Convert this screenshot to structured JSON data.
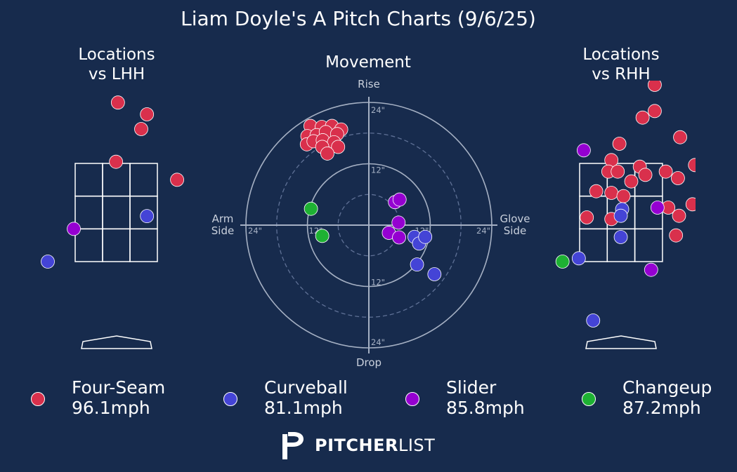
{
  "title": "Liam Doyle's A Pitch Charts (9/6/25)",
  "panels": {
    "lhh": {
      "line1": "Locations",
      "line2": "vs LHH"
    },
    "movement": {
      "title": "Movement"
    },
    "rhh": {
      "line1": "Locations",
      "line2": "vs RHH"
    }
  },
  "movement_labels": {
    "top": "Rise",
    "bottom": "Drop",
    "left_line1": "Arm",
    "left_line2": "Side",
    "right_line1": "Glove",
    "right_line2": "Side",
    "rings": [
      "12\"",
      "24\""
    ]
  },
  "colors": {
    "background": "#172b4d",
    "Four-Seam": "#d9304c",
    "Curveball": "#4444d6",
    "Slider": "#9500d1",
    "Changeup": "#1eb133"
  },
  "legend": [
    {
      "pitch": "Four-Seam",
      "speed": "96.1mph"
    },
    {
      "pitch": "Curveball",
      "speed": "81.1mph"
    },
    {
      "pitch": "Slider",
      "speed": "85.8mph"
    },
    {
      "pitch": "Changeup",
      "speed": "87.2mph"
    }
  ],
  "brand": {
    "bold": "PITCHER",
    "light": "LIST",
    "icon": "pitcherlist-logo-icon"
  },
  "chart_data": [
    {
      "type": "scatter",
      "name": "Locations vs LHH",
      "xlabel": "",
      "ylabel": "",
      "zone": {
        "cols": 3,
        "rows": 3
      },
      "units": "strike-zone widths/heights from zone bottom-left (x: 0-3, y: 0-3)",
      "points": [
        {
          "pitch": "Four-Seam",
          "x": 1.56,
          "y": 4.86
        },
        {
          "pitch": "Four-Seam",
          "x": 2.62,
          "y": 4.5
        },
        {
          "pitch": "Four-Seam",
          "x": 2.41,
          "y": 4.05
        },
        {
          "pitch": "Four-Seam",
          "x": 1.49,
          "y": 3.05
        },
        {
          "pitch": "Four-Seam",
          "x": 3.72,
          "y": 2.5
        },
        {
          "pitch": "Curveball",
          "x": 2.62,
          "y": 1.39
        },
        {
          "pitch": "Curveball",
          "x": -1.0,
          "y": 0.0
        },
        {
          "pitch": "Slider",
          "x": -0.05,
          "y": 1.0
        }
      ]
    },
    {
      "type": "scatter",
      "name": "Movement",
      "units": "inches (x: negative = arm side, positive = glove side; y: positive = rise)",
      "xlim": [
        -24,
        24
      ],
      "ylim": [
        -24,
        24
      ],
      "rings": [
        6,
        12,
        18,
        24
      ],
      "points": [
        {
          "pitch": "Four-Seam",
          "x": -11.4,
          "y": 19.4
        },
        {
          "pitch": "Four-Seam",
          "x": -9.2,
          "y": 19.2
        },
        {
          "pitch": "Four-Seam",
          "x": -7.2,
          "y": 19.4
        },
        {
          "pitch": "Four-Seam",
          "x": -5.4,
          "y": 18.7
        },
        {
          "pitch": "Four-Seam",
          "x": -12.0,
          "y": 17.4
        },
        {
          "pitch": "Four-Seam",
          "x": -10.2,
          "y": 17.6
        },
        {
          "pitch": "Four-Seam",
          "x": -8.4,
          "y": 18.2
        },
        {
          "pitch": "Four-Seam",
          "x": -6.2,
          "y": 17.8
        },
        {
          "pitch": "Four-Seam",
          "x": -12.1,
          "y": 15.8
        },
        {
          "pitch": "Four-Seam",
          "x": -10.8,
          "y": 16.4
        },
        {
          "pitch": "Four-Seam",
          "x": -9.0,
          "y": 16.6
        },
        {
          "pitch": "Four-Seam",
          "x": -6.8,
          "y": 16.2
        },
        {
          "pitch": "Four-Seam",
          "x": -9.1,
          "y": 15.3
        },
        {
          "pitch": "Four-Seam",
          "x": -6.0,
          "y": 15.3
        },
        {
          "pitch": "Four-Seam",
          "x": -8.1,
          "y": 14.0
        },
        {
          "pitch": "Curveball",
          "x": 8.9,
          "y": -2.3
        },
        {
          "pitch": "Curveball",
          "x": 9.8,
          "y": -3.6
        },
        {
          "pitch": "Curveball",
          "x": 11.0,
          "y": -2.3
        },
        {
          "pitch": "Curveball",
          "x": 9.4,
          "y": -7.7
        },
        {
          "pitch": "Curveball",
          "x": 12.8,
          "y": -9.6
        },
        {
          "pitch": "Slider",
          "x": 5.1,
          "y": 4.5
        },
        {
          "pitch": "Slider",
          "x": 6.0,
          "y": 5.0
        },
        {
          "pitch": "Slider",
          "x": 5.8,
          "y": 0.5
        },
        {
          "pitch": "Slider",
          "x": 3.9,
          "y": -1.5
        },
        {
          "pitch": "Slider",
          "x": 5.9,
          "y": -2.4
        },
        {
          "pitch": "Changeup",
          "x": -11.3,
          "y": 3.2
        },
        {
          "pitch": "Changeup",
          "x": -9.1,
          "y": -2.1
        }
      ]
    },
    {
      "type": "scatter",
      "name": "Locations vs RHH",
      "xlabel": "",
      "ylabel": "",
      "zone": {
        "cols": 3,
        "rows": 3
      },
      "units": "strike-zone widths/heights from zone bottom-left (x: 0-3, y: 0-3)",
      "points": [
        {
          "pitch": "Four-Seam",
          "x": 2.72,
          "y": 5.4
        },
        {
          "pitch": "Four-Seam",
          "x": 2.72,
          "y": 4.6
        },
        {
          "pitch": "Four-Seam",
          "x": 2.28,
          "y": 4.4
        },
        {
          "pitch": "Four-Seam",
          "x": 3.64,
          "y": 3.8
        },
        {
          "pitch": "Four-Seam",
          "x": 1.44,
          "y": 3.6
        },
        {
          "pitch": "Four-Seam",
          "x": 1.15,
          "y": 3.1
        },
        {
          "pitch": "Four-Seam",
          "x": 4.18,
          "y": 2.95
        },
        {
          "pitch": "Four-Seam",
          "x": 1.04,
          "y": 2.75
        },
        {
          "pitch": "Four-Seam",
          "x": 1.38,
          "y": 2.75
        },
        {
          "pitch": "Four-Seam",
          "x": 2.18,
          "y": 2.9
        },
        {
          "pitch": "Four-Seam",
          "x": 3.12,
          "y": 2.75
        },
        {
          "pitch": "Four-Seam",
          "x": 2.38,
          "y": 2.65
        },
        {
          "pitch": "Four-Seam",
          "x": 3.56,
          "y": 2.55
        },
        {
          "pitch": "Four-Seam",
          "x": 1.87,
          "y": 2.45
        },
        {
          "pitch": "Four-Seam",
          "x": 0.6,
          "y": 2.15
        },
        {
          "pitch": "Four-Seam",
          "x": 1.15,
          "y": 2.1
        },
        {
          "pitch": "Four-Seam",
          "x": 1.59,
          "y": 2.0
        },
        {
          "pitch": "Four-Seam",
          "x": 4.09,
          "y": 1.75
        },
        {
          "pitch": "Four-Seam",
          "x": 3.21,
          "y": 1.65
        },
        {
          "pitch": "Four-Seam",
          "x": 0.26,
          "y": 1.35
        },
        {
          "pitch": "Four-Seam",
          "x": 1.15,
          "y": 1.3
        },
        {
          "pitch": "Four-Seam",
          "x": 3.6,
          "y": 1.4
        },
        {
          "pitch": "Four-Seam",
          "x": 3.49,
          "y": 0.8
        },
        {
          "pitch": "Curveball",
          "x": 1.54,
          "y": 1.6
        },
        {
          "pitch": "Curveball",
          "x": 1.49,
          "y": 1.4
        },
        {
          "pitch": "Curveball",
          "x": 1.49,
          "y": 0.75
        },
        {
          "pitch": "Curveball",
          "x": -0.03,
          "y": 0.1
        },
        {
          "pitch": "Curveball",
          "x": 0.49,
          "y": -1.8
        },
        {
          "pitch": "Slider",
          "x": 0.15,
          "y": 3.4
        },
        {
          "pitch": "Slider",
          "x": 2.82,
          "y": 1.65
        },
        {
          "pitch": "Slider",
          "x": 2.59,
          "y": -0.25
        },
        {
          "pitch": "Changeup",
          "x": -0.62,
          "y": 0.0
        }
      ]
    }
  ]
}
